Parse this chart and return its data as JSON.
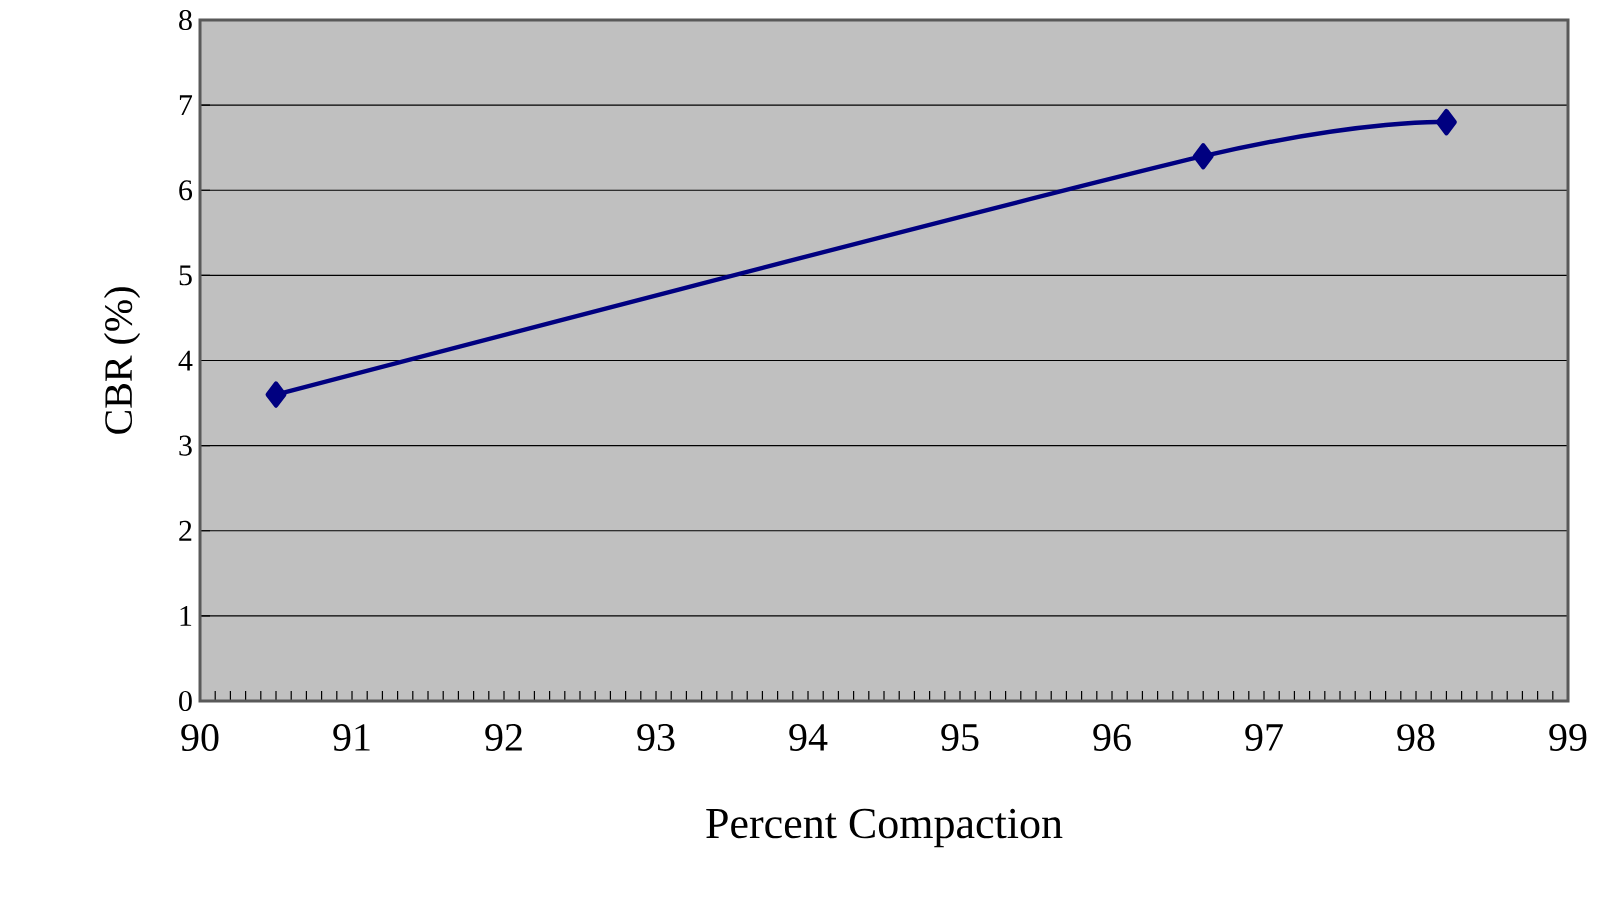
{
  "chart_data": {
    "type": "line",
    "xlabel": "Percent Compaction",
    "ylabel": "CBR (%)",
    "x": [
      90.5,
      96.6,
      98.2
    ],
    "series": [
      {
        "color": "#000080",
        "values": [
          3.6,
          6.4,
          6.8
        ]
      }
    ],
    "xlim": [
      90,
      99
    ],
    "ylim": [
      0,
      8
    ],
    "xticks": [
      90,
      91,
      92,
      93,
      94,
      95,
      96,
      97,
      98,
      99
    ],
    "yticks": [
      0,
      1,
      2,
      3,
      4,
      5,
      6,
      7,
      8
    ],
    "grid": "y",
    "marker": "diamond",
    "line_style": "solid"
  }
}
